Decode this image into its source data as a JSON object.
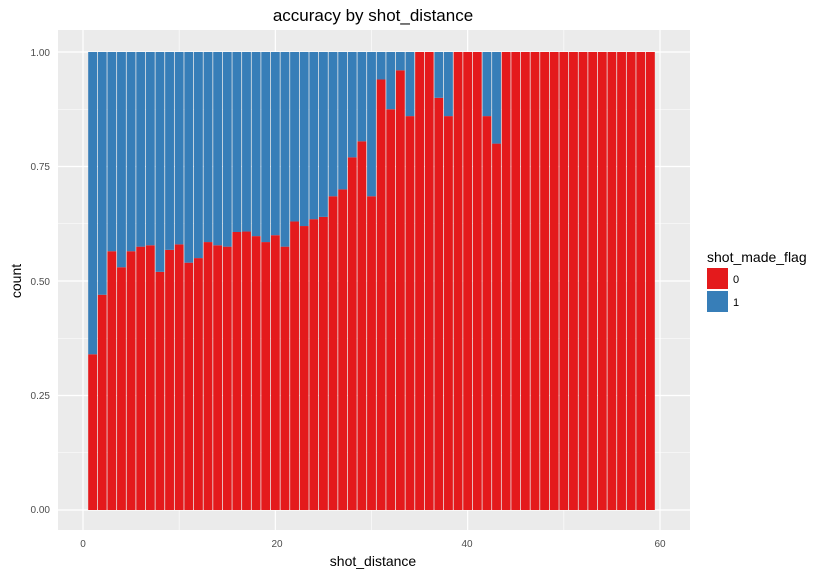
{
  "chart_data": {
    "type": "bar",
    "stacked": "fill",
    "title": "accuracy by shot_distance",
    "xlabel": "shot_distance",
    "ylabel": "count",
    "x_ticks": [
      "0",
      "20",
      "40",
      "60"
    ],
    "y_ticks": [
      "0.00",
      "0.25",
      "0.50",
      "0.75",
      "1.00"
    ],
    "xlim": [
      -1,
      62
    ],
    "ylim": [
      0,
      1
    ],
    "grid": true,
    "legend": {
      "title": "shot_made_flag",
      "position": "right",
      "entries": [
        {
          "label": "0",
          "color": "#E41A1C"
        },
        {
          "label": "1",
          "color": "#377EB8"
        }
      ]
    },
    "x": [
      1,
      2,
      3,
      4,
      5,
      6,
      7,
      8,
      9,
      10,
      11,
      12,
      13,
      14,
      15,
      16,
      17,
      18,
      19,
      20,
      21,
      22,
      23,
      24,
      25,
      26,
      27,
      28,
      29,
      30,
      31,
      32,
      33,
      34,
      35,
      36,
      37,
      38,
      39,
      40,
      41,
      42,
      43,
      44,
      45,
      46,
      47,
      48,
      49,
      50,
      51,
      52,
      53,
      54,
      55,
      56,
      57,
      58,
      59
    ],
    "series": [
      {
        "name": "0",
        "color": "#E41A1C",
        "values": [
          0.34,
          0.47,
          0.565,
          0.53,
          0.565,
          0.575,
          0.578,
          0.52,
          0.568,
          0.58,
          0.54,
          0.55,
          0.585,
          0.578,
          0.575,
          0.607,
          0.608,
          0.598,
          0.585,
          0.6,
          0.575,
          0.63,
          0.62,
          0.635,
          0.64,
          0.685,
          0.7,
          0.77,
          0.805,
          0.685,
          0.94,
          0.875,
          0.96,
          0.86,
          1.0,
          1.0,
          0.9,
          0.86,
          1.0,
          1.0,
          1.0,
          0.86,
          0.8,
          1.0,
          1.0,
          1.0,
          1.0,
          1.0,
          1.0,
          1.0,
          1.0,
          1.0,
          1.0,
          1.0,
          1.0,
          1.0,
          1.0,
          1.0,
          1.0
        ]
      },
      {
        "name": "1",
        "color": "#377EB8",
        "values": [
          0.66,
          0.53,
          0.435,
          0.47,
          0.435,
          0.425,
          0.422,
          0.48,
          0.432,
          0.42,
          0.46,
          0.45,
          0.415,
          0.422,
          0.425,
          0.393,
          0.392,
          0.402,
          0.415,
          0.4,
          0.425,
          0.37,
          0.38,
          0.365,
          0.36,
          0.315,
          0.3,
          0.23,
          0.195,
          0.315,
          0.06,
          0.125,
          0.04,
          0.14,
          0.0,
          0.0,
          0.1,
          0.14,
          0.0,
          0.0,
          0.0,
          0.14,
          0.2,
          0.0,
          0.0,
          0.0,
          0.0,
          0.0,
          0.0,
          0.0,
          0.0,
          0.0,
          0.0,
          0.0,
          0.0,
          0.0,
          0.0,
          0.0,
          0.0
        ]
      }
    ]
  }
}
